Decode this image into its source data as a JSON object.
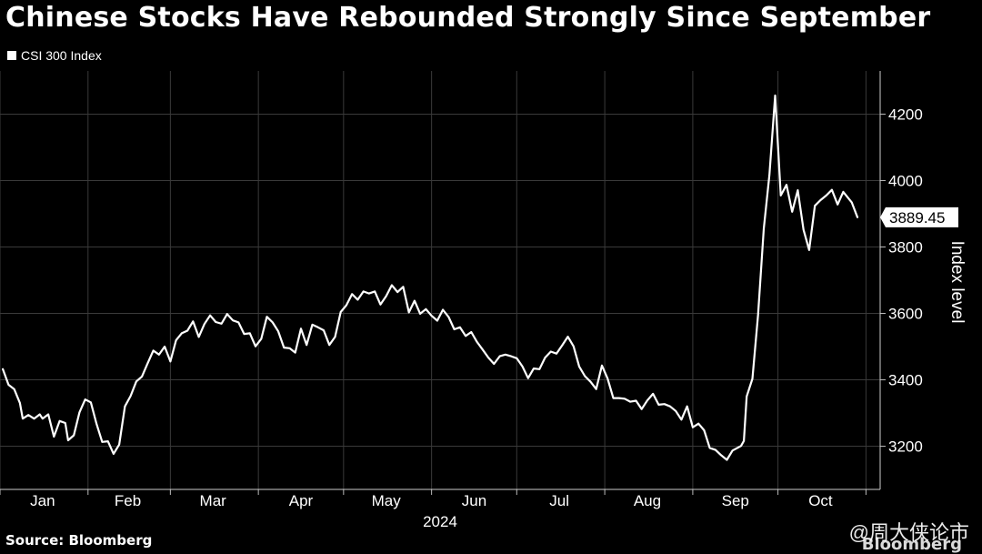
{
  "header": {
    "title": "Chinese Stocks Have Rebounded Strongly Since September"
  },
  "footer": {
    "source": "Source: Bloomberg",
    "brand": "Bloomberg",
    "watermark": "@周大侠论市"
  },
  "colors": {
    "background": "#000000",
    "line": "#ffffff",
    "grid": "#3a3a3a"
  },
  "chart_data": {
    "type": "line",
    "series": [
      {
        "name": "CSI 300 Index",
        "last_value_label": "3889.45",
        "points": [
          [
            "2024-01-02",
            3432
          ],
          [
            "2024-01-04",
            3385
          ],
          [
            "2024-01-06",
            3372
          ],
          [
            "2024-01-08",
            3330
          ],
          [
            "2024-01-09",
            3283
          ],
          [
            "2024-01-11",
            3294
          ],
          [
            "2024-01-13",
            3283
          ],
          [
            "2024-01-15",
            3296
          ],
          [
            "2024-01-16",
            3283
          ],
          [
            "2024-01-18",
            3296
          ],
          [
            "2024-01-20",
            3229
          ],
          [
            "2024-01-22",
            3276
          ],
          [
            "2024-01-24",
            3270
          ],
          [
            "2024-01-25",
            3218
          ],
          [
            "2024-01-27",
            3233
          ],
          [
            "2024-01-29",
            3302
          ],
          [
            "2024-01-31",
            3341
          ],
          [
            "2024-02-02",
            3332
          ],
          [
            "2024-02-04",
            3267
          ],
          [
            "2024-02-06",
            3213
          ],
          [
            "2024-02-08",
            3215
          ],
          [
            "2024-02-10",
            3177
          ],
          [
            "2024-02-12",
            3205
          ],
          [
            "2024-02-14",
            3320
          ],
          [
            "2024-02-16",
            3351
          ],
          [
            "2024-02-18",
            3395
          ],
          [
            "2024-02-20",
            3410
          ],
          [
            "2024-02-22",
            3450
          ],
          [
            "2024-02-24",
            3488
          ],
          [
            "2024-02-26",
            3476
          ],
          [
            "2024-02-28",
            3500
          ],
          [
            "2024-03-01",
            3455
          ],
          [
            "2024-03-03",
            3519
          ],
          [
            "2024-03-05",
            3540
          ],
          [
            "2024-03-07",
            3548
          ],
          [
            "2024-03-09",
            3576
          ],
          [
            "2024-03-11",
            3529
          ],
          [
            "2024-03-13",
            3568
          ],
          [
            "2024-03-15",
            3594
          ],
          [
            "2024-03-17",
            3574
          ],
          [
            "2024-03-19",
            3569
          ],
          [
            "2024-03-21",
            3598
          ],
          [
            "2024-03-23",
            3579
          ],
          [
            "2024-03-25",
            3573
          ],
          [
            "2024-03-27",
            3538
          ],
          [
            "2024-03-29",
            3540
          ],
          [
            "2024-03-31",
            3501
          ],
          [
            "2024-04-02",
            3523
          ],
          [
            "2024-04-04",
            3590
          ],
          [
            "2024-04-06",
            3573
          ],
          [
            "2024-04-08",
            3546
          ],
          [
            "2024-04-10",
            3497
          ],
          [
            "2024-04-12",
            3495
          ],
          [
            "2024-04-14",
            3482
          ],
          [
            "2024-04-16",
            3554
          ],
          [
            "2024-04-18",
            3505
          ],
          [
            "2024-04-20",
            3566
          ],
          [
            "2024-04-22",
            3558
          ],
          [
            "2024-04-24",
            3549
          ],
          [
            "2024-04-26",
            3505
          ],
          [
            "2024-04-28",
            3529
          ],
          [
            "2024-04-30",
            3604
          ],
          [
            "2024-05-02",
            3625
          ],
          [
            "2024-05-04",
            3658
          ],
          [
            "2024-05-06",
            3641
          ],
          [
            "2024-05-08",
            3666
          ],
          [
            "2024-05-10",
            3660
          ],
          [
            "2024-05-12",
            3666
          ],
          [
            "2024-05-14",
            3627
          ],
          [
            "2024-05-16",
            3652
          ],
          [
            "2024-05-18",
            3685
          ],
          [
            "2024-05-20",
            3664
          ],
          [
            "2024-05-22",
            3680
          ],
          [
            "2024-05-24",
            3603
          ],
          [
            "2024-05-26",
            3638
          ],
          [
            "2024-05-28",
            3599
          ],
          [
            "2024-05-30",
            3613
          ],
          [
            "2024-06-01",
            3593
          ],
          [
            "2024-06-03",
            3578
          ],
          [
            "2024-06-05",
            3611
          ],
          [
            "2024-06-07",
            3589
          ],
          [
            "2024-06-09",
            3552
          ],
          [
            "2024-06-11",
            3558
          ],
          [
            "2024-06-13",
            3532
          ],
          [
            "2024-06-15",
            3544
          ],
          [
            "2024-06-17",
            3514
          ],
          [
            "2024-06-19",
            3491
          ],
          [
            "2024-06-21",
            3467
          ],
          [
            "2024-06-23",
            3448
          ],
          [
            "2024-06-25",
            3471
          ],
          [
            "2024-06-27",
            3476
          ],
          [
            "2024-06-29",
            3471
          ],
          [
            "2024-07-01",
            3465
          ],
          [
            "2024-07-03",
            3440
          ],
          [
            "2024-07-05",
            3405
          ],
          [
            "2024-07-07",
            3434
          ],
          [
            "2024-07-09",
            3432
          ],
          [
            "2024-07-11",
            3467
          ],
          [
            "2024-07-13",
            3485
          ],
          [
            "2024-07-15",
            3479
          ],
          [
            "2024-07-17",
            3504
          ],
          [
            "2024-07-19",
            3530
          ],
          [
            "2024-07-21",
            3501
          ],
          [
            "2024-07-23",
            3440
          ],
          [
            "2024-07-25",
            3411
          ],
          [
            "2024-07-27",
            3394
          ],
          [
            "2024-07-29",
            3372
          ],
          [
            "2024-07-31",
            3443
          ],
          [
            "2024-08-02",
            3404
          ],
          [
            "2024-08-04",
            3345
          ],
          [
            "2024-08-06",
            3345
          ],
          [
            "2024-08-08",
            3343
          ],
          [
            "2024-08-10",
            3334
          ],
          [
            "2024-08-12",
            3337
          ],
          [
            "2024-08-14",
            3312
          ],
          [
            "2024-08-16",
            3338
          ],
          [
            "2024-08-18",
            3358
          ],
          [
            "2024-08-20",
            3325
          ],
          [
            "2024-08-22",
            3327
          ],
          [
            "2024-08-24",
            3320
          ],
          [
            "2024-08-26",
            3306
          ],
          [
            "2024-08-28",
            3280
          ],
          [
            "2024-08-30",
            3320
          ],
          [
            "2024-09-01",
            3257
          ],
          [
            "2024-09-03",
            3268
          ],
          [
            "2024-09-05",
            3248
          ],
          [
            "2024-09-07",
            3195
          ],
          [
            "2024-09-09",
            3189
          ],
          [
            "2024-09-11",
            3173
          ],
          [
            "2024-09-13",
            3159
          ],
          [
            "2024-09-15",
            3187
          ],
          [
            "2024-09-18",
            3201
          ],
          [
            "2024-09-19",
            3216
          ],
          [
            "2024-09-20",
            3350
          ],
          [
            "2024-09-22",
            3403
          ],
          [
            "2024-09-24",
            3595
          ],
          [
            "2024-09-26",
            3855
          ],
          [
            "2024-09-28",
            4017
          ],
          [
            "2024-09-30",
            4256
          ],
          [
            "2024-10-02",
            3955
          ],
          [
            "2024-10-04",
            3987
          ],
          [
            "2024-10-06",
            3906
          ],
          [
            "2024-10-08",
            3971
          ],
          [
            "2024-10-10",
            3852
          ],
          [
            "2024-10-12",
            3791
          ],
          [
            "2024-10-14",
            3924
          ],
          [
            "2024-10-16",
            3941
          ],
          [
            "2024-10-18",
            3955
          ],
          [
            "2024-10-20",
            3972
          ],
          [
            "2024-10-22",
            3928
          ],
          [
            "2024-10-24",
            3966
          ],
          [
            "2024-10-27",
            3934
          ],
          [
            "2024-10-29",
            3889.45
          ]
        ]
      }
    ],
    "x_ticks": [
      "Jan",
      "Feb",
      "Mar",
      "Apr",
      "May",
      "Jun",
      "Jul",
      "Aug",
      "Sep",
      "Oct"
    ],
    "x_year_label": "2024",
    "ylabel": "Index level",
    "y_ticks": [
      3200,
      3400,
      3600,
      3800,
      4000,
      4200
    ],
    "ylim": [
      3070,
      4330
    ],
    "xlim": [
      "2024-01-01",
      "2024-11-06"
    ],
    "grid": "horizontal and vertical",
    "legend": "top-left",
    "y_axis_position": "right"
  }
}
